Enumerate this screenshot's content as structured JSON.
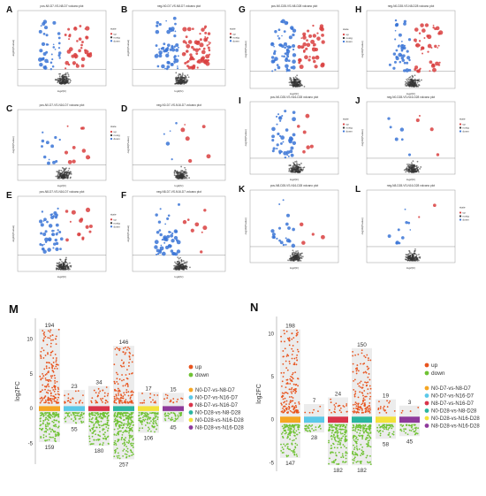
{
  "panel_letters": {
    "A": "A",
    "B": "B",
    "C": "C",
    "D": "D",
    "E": "E",
    "F": "F",
    "G": "G",
    "H": "H",
    "I": "I",
    "J": "J",
    "K": "K",
    "L": "L",
    "M": "M",
    "N": "N"
  },
  "volcano_common": {
    "xlabel": "log2(fc)",
    "ylabel": "-log10(Pvalue)",
    "legend_title": "state",
    "legend_items": [
      "up",
      "nosig",
      "down"
    ]
  },
  "volcano_titles": {
    "A": "pos-N0-D7-VS-N8-D7 volcano plot",
    "B": "neg-N0-D7-VS-N8-D7 volcano plot",
    "C": "pos-N0-D7-VS-N16-D7 volcano plot",
    "D": "neg-N0-D7-VS-N16-D7 volcano plot",
    "E": "pos-N8-D7-VS-N16-D7 volcano plot",
    "F": "neg-N8-D7-VS-N16-D7 volcano plot",
    "G": "pos-N0-D28-VS-N8-D28 volcano plot",
    "H": "neg-N0-D28-VS-N8-D28 volcano plot",
    "I": "pos-N0-D28-VS-N16-D28 volcano plot",
    "J": "neg-N0-D28-VS-N16-D28 volcano plot",
    "K": "pos-N8-D28-VS-N16-D28 volcano plot",
    "L": "neg-N8-D28-VS-N16-D28 volcano plot"
  },
  "colors": {
    "up": "#e8541e",
    "down": "#6fc233",
    "nosig": "#333333",
    "vup": "#d94040",
    "vdown": "#3a74d6"
  },
  "chart_data": [
    {
      "type": "scatter",
      "panel": "M",
      "ylabel": "log2FC",
      "ylim": [
        -8,
        13
      ],
      "yticks": [
        -5,
        0,
        5,
        10
      ],
      "legend": {
        "up": "up",
        "down": "down"
      },
      "comparisons": [
        "N0-D7-vs-N8-D7",
        "N0-D7-vs-N16-D7",
        "N8-D7-vs-N16-D7",
        "N0-D28-vs-N8-D28",
        "N0-D28-vs-N16-D28",
        "N8-D28-vs-N16-D28"
      ],
      "comparison_colors": [
        "#f5a623",
        "#5bc8e8",
        "#d9344a",
        "#2bb5a0",
        "#f3e23b",
        "#8e3a9b"
      ],
      "up_counts": [
        194,
        23,
        34,
        146,
        17,
        15
      ],
      "down_counts": [
        159,
        55,
        180,
        257,
        106,
        45
      ]
    },
    {
      "type": "scatter",
      "panel": "N",
      "ylabel": "log2FC",
      "ylim": [
        -6,
        12
      ],
      "yticks": [
        -5,
        0,
        5,
        10
      ],
      "legend": {
        "up": "up",
        "down": "down"
      },
      "comparisons": [
        "N0-D7-vs-N8-D7",
        "N0-D7-vs-N16-D7",
        "N8-D7-vs-N16-D7",
        "N0-D28-vs-N8-D28",
        "N0-D28-vs-N16-D28",
        "N8-D28-vs-N16-D28"
      ],
      "comparison_colors": [
        "#f5a623",
        "#5bc8e8",
        "#d9344a",
        "#2bb5a0",
        "#f3e23b",
        "#8e3a9b"
      ],
      "up_counts": [
        198,
        7,
        24,
        150,
        19,
        3
      ],
      "down_counts": [
        147,
        28,
        182,
        182,
        58,
        45
      ]
    }
  ]
}
